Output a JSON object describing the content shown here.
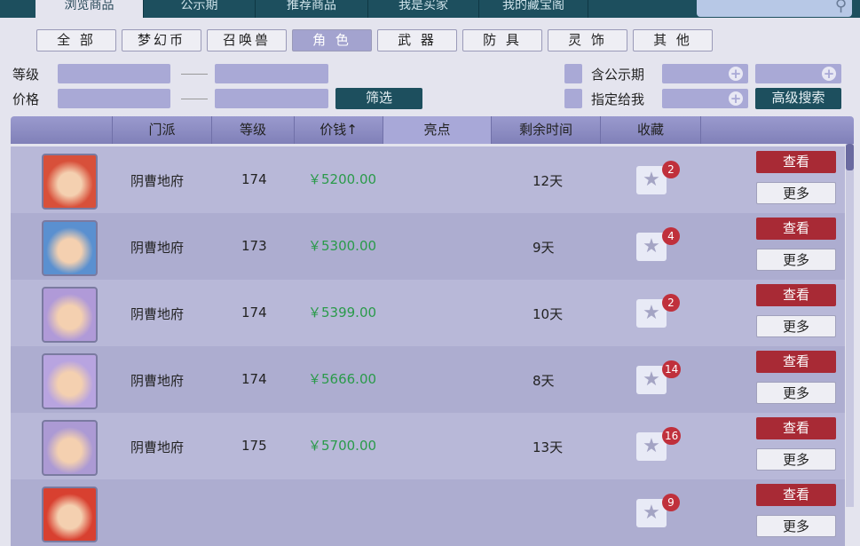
{
  "top_tabs": [
    {
      "label": "浏览商品",
      "active": true
    },
    {
      "label": "公示期"
    },
    {
      "label": "推荐商品"
    },
    {
      "label": "我是买家"
    },
    {
      "label": "我的藏宝阁"
    }
  ],
  "search": {
    "icon": "search-icon"
  },
  "categories": [
    {
      "label": "全 部"
    },
    {
      "label": "梦幻币"
    },
    {
      "label": "召唤兽"
    },
    {
      "label": "角 色",
      "active": true
    },
    {
      "label": "武 器"
    },
    {
      "label": "防 具"
    },
    {
      "label": "灵 饰"
    },
    {
      "label": "其 他"
    }
  ],
  "filters": {
    "level_label": "等级",
    "price_label": "价格",
    "filter_button": "筛选",
    "include_public_label": "含公示期",
    "assigned_to_me_label": "指定给我",
    "advanced_search_button": "高级搜索"
  },
  "table": {
    "headers": [
      "门派",
      "等级",
      "价钱↑",
      "亮点",
      "剩余时间",
      "收藏"
    ],
    "rows": [
      {
        "sect": "阴曹地府",
        "level": "174",
        "price": "￥5200.00",
        "time": "12天",
        "favorites": "2",
        "avatar_color": "#d8503a"
      },
      {
        "sect": "阴曹地府",
        "level": "173",
        "price": "￥5300.00",
        "time": "9天",
        "favorites": "4",
        "avatar_color": "#5a90d0"
      },
      {
        "sect": "阴曹地府",
        "level": "174",
        "price": "￥5399.00",
        "time": "10天",
        "favorites": "2",
        "avatar_color": "#b09ad8"
      },
      {
        "sect": "阴曹地府",
        "level": "174",
        "price": "￥5666.00",
        "time": "8天",
        "favorites": "14",
        "avatar_color": "#b8a4e0"
      },
      {
        "sect": "阴曹地府",
        "level": "175",
        "price": "￥5700.00",
        "time": "13天",
        "favorites": "16",
        "avatar_color": "#ac9ad4"
      },
      {
        "sect": "",
        "level": "",
        "price": "",
        "time": "",
        "favorites": "9",
        "avatar_color": "#d84030"
      }
    ],
    "view_label": "查看",
    "more_label": "更多"
  }
}
